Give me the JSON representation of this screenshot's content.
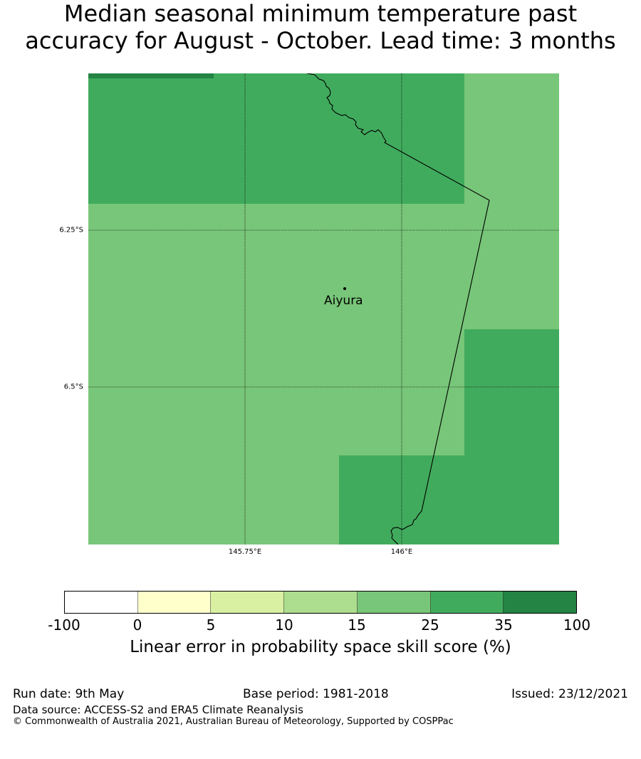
{
  "title": {
    "line1": "Median seasonal minimum temperature past",
    "line2": "accuracy for August - October. Lead time: 3 months"
  },
  "map": {
    "lat_labels": [
      "6.25°S",
      "6.5°S"
    ],
    "lon_labels": [
      "145.75°E",
      "146°E"
    ],
    "location": {
      "name": "Aiyura",
      "marker": "point"
    },
    "colors": {
      "band_15_25": "#78c679",
      "band_25_35": "#41ab5d",
      "band_35_100": "#238443",
      "coastline": "#000000"
    }
  },
  "colorbar": {
    "ticks": [
      "-100",
      "0",
      "5",
      "10",
      "15",
      "25",
      "35",
      "100"
    ],
    "colors": [
      "#ffffff",
      "#ffffcc",
      "#d9f0a3",
      "#addd8e",
      "#78c679",
      "#41ab5d",
      "#238443"
    ],
    "label": "Linear error in probability space skill score (%)"
  },
  "footer": {
    "run_date": "Run date: 9th May",
    "base_period": "Base period: 1981-2018",
    "issued": "Issued: 23/12/2021",
    "data_source": "Data source: ACCESS-S2 and ERA5 Climate Reanalysis",
    "copyright": "© Commonwealth of Australia 2021, Australian Bureau of Meteorology, Supported by COSPPac"
  }
}
